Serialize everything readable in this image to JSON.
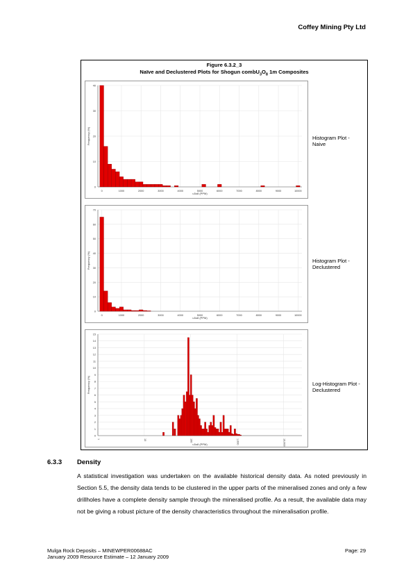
{
  "header": {
    "company": "Coffey Mining Pty Ltd"
  },
  "figure": {
    "number": "Figure 6.3.2_3",
    "title_pre": "Naïve and Declustered Plots for Shogun combU",
    "title_sub1": "3",
    "title_mid": "O",
    "title_sub2": "8",
    "title_post": " 1m Composites",
    "plot_labels": [
      "Histogram Plot - Naive",
      "Histogram Plot - Declustered",
      "Log-Histogram Plot - Declustered"
    ]
  },
  "chart_data": [
    {
      "type": "bar",
      "title": "",
      "xlabel": "u3o8 (PPM)",
      "ylabel": "Frequency (%)",
      "xlim": [
        -200,
        10200
      ],
      "ylim": [
        0,
        40
      ],
      "xticks": [
        "0",
        "1000",
        "2000",
        "3000",
        "4000",
        "5000",
        "6000",
        "7000",
        "8000",
        "9000",
        "10000"
      ],
      "yticks": [
        "0",
        "10",
        "20",
        "30",
        "40"
      ],
      "bin_width": 200,
      "bin_starts": [
        -100,
        100,
        300,
        500,
        700,
        900,
        1100,
        1300,
        1500,
        1700,
        1900,
        2100,
        2300,
        2500,
        2700,
        2900,
        3100,
        3300,
        3700,
        5100,
        5900,
        8100,
        9900
      ],
      "values": [
        40,
        16,
        9,
        7,
        6,
        4,
        3,
        3,
        3,
        2,
        2,
        1,
        1,
        1,
        1,
        1,
        0.5,
        0.5,
        0.5,
        1,
        1,
        0.5,
        0.5
      ],
      "color": "#e00000"
    },
    {
      "type": "bar",
      "title": "",
      "xlabel": "u3o8 (PPM)",
      "ylabel": "Frequency (%)",
      "xlim": [
        -200,
        10200
      ],
      "ylim": [
        0,
        70
      ],
      "xticks": [
        "0",
        "1000",
        "2000",
        "3000",
        "4000",
        "5000",
        "6000",
        "7000",
        "8000",
        "9000",
        "10000"
      ],
      "yticks": [
        "0",
        "10",
        "20",
        "30",
        "40",
        "50",
        "60",
        "70"
      ],
      "bin_width": 200,
      "bin_starts": [
        -100,
        100,
        300,
        500,
        700,
        900,
        1100,
        1300,
        1500,
        1700,
        1900,
        2100,
        2300
      ],
      "values": [
        65,
        14,
        6,
        3,
        2,
        3,
        1,
        1,
        0.5,
        0.5,
        1,
        0.5,
        0.3
      ],
      "color": "#e00000"
    },
    {
      "type": "bar",
      "title": "",
      "xlabel": "u3o8 (PPM)",
      "ylabel": "Frequency (%)",
      "xscale": "log",
      "xlim": [
        1,
        25000
      ],
      "ylim": [
        0,
        15
      ],
      "xticks": [
        "1",
        "10",
        "100",
        "1,000",
        "10,000"
      ],
      "yticks": [
        "0",
        "1",
        "2",
        "3",
        "4",
        "5",
        "6",
        "7",
        "8",
        "9",
        "10",
        "11",
        "12",
        "13",
        "14",
        "15"
      ],
      "bins_per_decade": 30,
      "bin_starts": [
        25,
        40,
        44,
        52,
        56,
        60,
        64,
        69,
        74,
        80,
        86,
        92,
        98,
        105,
        113,
        121,
        130,
        139,
        149,
        160,
        172,
        184,
        198,
        212,
        228,
        244,
        262,
        281,
        302,
        324,
        347,
        372,
        399,
        428,
        459,
        493,
        529,
        567,
        608,
        652,
        700,
        751,
        806,
        864,
        927,
        995,
        1067,
        1145
      ],
      "values": [
        0.5,
        2,
        1,
        3,
        2.5,
        3,
        4,
        6,
        5,
        6.5,
        14.5,
        6,
        9,
        6,
        5,
        4,
        5.5,
        3,
        2.5,
        1.5,
        1,
        1,
        2,
        1,
        0.5,
        1.5,
        2,
        1.5,
        3,
        1.2,
        1,
        1,
        0.5,
        2,
        0.5,
        3,
        1,
        1,
        1,
        0.5,
        1.5,
        0.3,
        0.2,
        1,
        0.3,
        0.2,
        0.2,
        0.1
      ],
      "color": "#e00000"
    }
  ],
  "section": {
    "number": "6.3.3",
    "title": "Density",
    "body": "A statistical investigation was undertaken on the available historical density data.  As noted previously in Section 5.5, the density data tends to be clustered in the upper parts of the mineralised zones and only a few drillholes have a complete density sample through the mineralised profile.  As a result, the available data may not be giving a robust picture of the density characteristics throughout the mineralisation profile."
  },
  "footer": {
    "line1": "Mulga Rock Deposits – MINEWPER00688AC",
    "line2": "January 2009 Resource Estimate – 12 January 2009",
    "page": "Page:  29"
  }
}
